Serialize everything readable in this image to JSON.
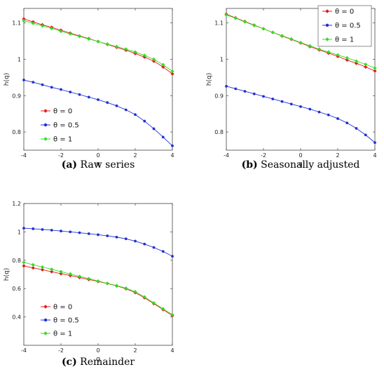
{
  "chart_data": [
    {
      "type": "line",
      "caption_letter": "(a)",
      "caption_text": "Raw series",
      "xlabel": "q",
      "ylabel": "h(q)",
      "xlim": [
        -4,
        4
      ],
      "ylim": [
        0.75,
        1.14
      ],
      "xticks": [
        "-4",
        "-2",
        "0",
        "2",
        "4"
      ],
      "yticks": [
        {
          "v": 0.8,
          "label": "0.8"
        },
        {
          "v": 0.9,
          "label": "0.9"
        },
        {
          "v": 1.0,
          "label": "1"
        },
        {
          "v": 1.1,
          "label": "1.1"
        }
      ],
      "legend_position": "lower-left",
      "x": [
        -4,
        -3.5,
        -3,
        -2.5,
        -2,
        -1.5,
        -1,
        -0.5,
        0,
        0.5,
        1,
        1.5,
        2,
        2.5,
        3,
        3.5,
        4
      ],
      "series": [
        {
          "name": "θ = 0",
          "color": "#e41a1c",
          "marker": "diamond",
          "values": [
            1.111,
            1.103,
            1.095,
            1.088,
            1.08,
            1.072,
            1.064,
            1.057,
            1.049,
            1.041,
            1.033,
            1.025,
            1.016,
            1.006,
            0.995,
            0.979,
            0.96
          ]
        },
        {
          "name": "θ = 0.5",
          "color": "#1f2fd6",
          "marker": "circle",
          "values": [
            0.943,
            0.937,
            0.93,
            0.923,
            0.917,
            0.91,
            0.903,
            0.896,
            0.889,
            0.881,
            0.872,
            0.861,
            0.848,
            0.83,
            0.809,
            0.786,
            0.762
          ]
        },
        {
          "name": "θ = 1",
          "color": "#33dd22",
          "marker": "diamond",
          "values": [
            1.106,
            1.099,
            1.092,
            1.085,
            1.077,
            1.07,
            1.063,
            1.056,
            1.049,
            1.042,
            1.035,
            1.028,
            1.02,
            1.011,
            1.0,
            0.985,
            0.967
          ]
        }
      ]
    },
    {
      "type": "line",
      "caption_letter": "(b)",
      "caption_text": "Seasonally adjusted",
      "xlabel": "q",
      "ylabel": "h(q)",
      "xlim": [
        -4,
        4
      ],
      "ylim": [
        0.75,
        1.14
      ],
      "xticks": [
        "-4",
        "-2",
        "0",
        "2",
        "4"
      ],
      "yticks": [
        {
          "v": 0.8,
          "label": "0.8"
        },
        {
          "v": 0.9,
          "label": "0.9"
        },
        {
          "v": 1.0,
          "label": "1"
        },
        {
          "v": 1.1,
          "label": "1.1"
        }
      ],
      "legend_position": "top-right",
      "x": [
        -4,
        -3.5,
        -3,
        -2.5,
        -2,
        -1.5,
        -1,
        -0.5,
        0,
        0.5,
        1,
        1.5,
        2,
        2.5,
        3,
        3.5,
        4
      ],
      "series": [
        {
          "name": "θ = 0",
          "color": "#e41a1c",
          "marker": "diamond",
          "values": [
            1.124,
            1.114,
            1.104,
            1.094,
            1.084,
            1.074,
            1.064,
            1.055,
            1.045,
            1.035,
            1.026,
            1.017,
            1.008,
            0.998,
            0.989,
            0.979,
            0.968
          ]
        },
        {
          "name": "θ = 0.5",
          "color": "#1f2fd6",
          "marker": "circle",
          "values": [
            0.926,
            0.919,
            0.912,
            0.905,
            0.898,
            0.891,
            0.884,
            0.877,
            0.87,
            0.863,
            0.855,
            0.847,
            0.837,
            0.825,
            0.81,
            0.792,
            0.771
          ]
        },
        {
          "name": "θ = 1",
          "color": "#33dd22",
          "marker": "diamond",
          "values": [
            1.122,
            1.113,
            1.103,
            1.093,
            1.084,
            1.074,
            1.065,
            1.056,
            1.046,
            1.037,
            1.028,
            1.02,
            1.012,
            1.004,
            0.995,
            0.986,
            0.976
          ]
        }
      ]
    },
    {
      "type": "line",
      "caption_letter": "(c)",
      "caption_text": "Remainder",
      "xlabel": "q",
      "ylabel": "h(q)",
      "xlim": [
        -4,
        4
      ],
      "ylim": [
        0.2,
        1.2
      ],
      "xticks": [
        "-4",
        "-2",
        "0",
        "2",
        "4"
      ],
      "yticks": [
        {
          "v": 0.4,
          "label": "0.4"
        },
        {
          "v": 0.6,
          "label": "0.6"
        },
        {
          "v": 0.8,
          "label": "0.8"
        },
        {
          "v": 1.0,
          "label": "1"
        },
        {
          "v": 1.2,
          "label": "1.2"
        }
      ],
      "legend_position": "lower-left",
      "x": [
        -4,
        -3.5,
        -3,
        -2.5,
        -2,
        -1.5,
        -1,
        -0.5,
        0,
        0.5,
        1,
        1.5,
        2,
        2.5,
        3,
        3.5,
        4
      ],
      "series": [
        {
          "name": "θ = 0",
          "color": "#e41a1c",
          "marker": "diamond",
          "values": [
            0.76,
            0.746,
            0.733,
            0.719,
            0.705,
            0.692,
            0.678,
            0.664,
            0.65,
            0.636,
            0.619,
            0.599,
            0.572,
            0.535,
            0.494,
            0.452,
            0.41
          ]
        },
        {
          "name": "θ = 0.5",
          "color": "#1f2fd6",
          "marker": "circle",
          "values": [
            1.026,
            1.022,
            1.017,
            1.012,
            1.006,
            1.0,
            0.994,
            0.987,
            0.98,
            0.972,
            0.963,
            0.951,
            0.935,
            0.914,
            0.89,
            0.862,
            0.828
          ]
        },
        {
          "name": "θ = 1",
          "color": "#33dd22",
          "marker": "diamond",
          "values": [
            0.785,
            0.768,
            0.752,
            0.736,
            0.719,
            0.703,
            0.686,
            0.67,
            0.653,
            0.637,
            0.621,
            0.603,
            0.578,
            0.541,
            0.499,
            0.457,
            0.416
          ]
        }
      ]
    }
  ]
}
